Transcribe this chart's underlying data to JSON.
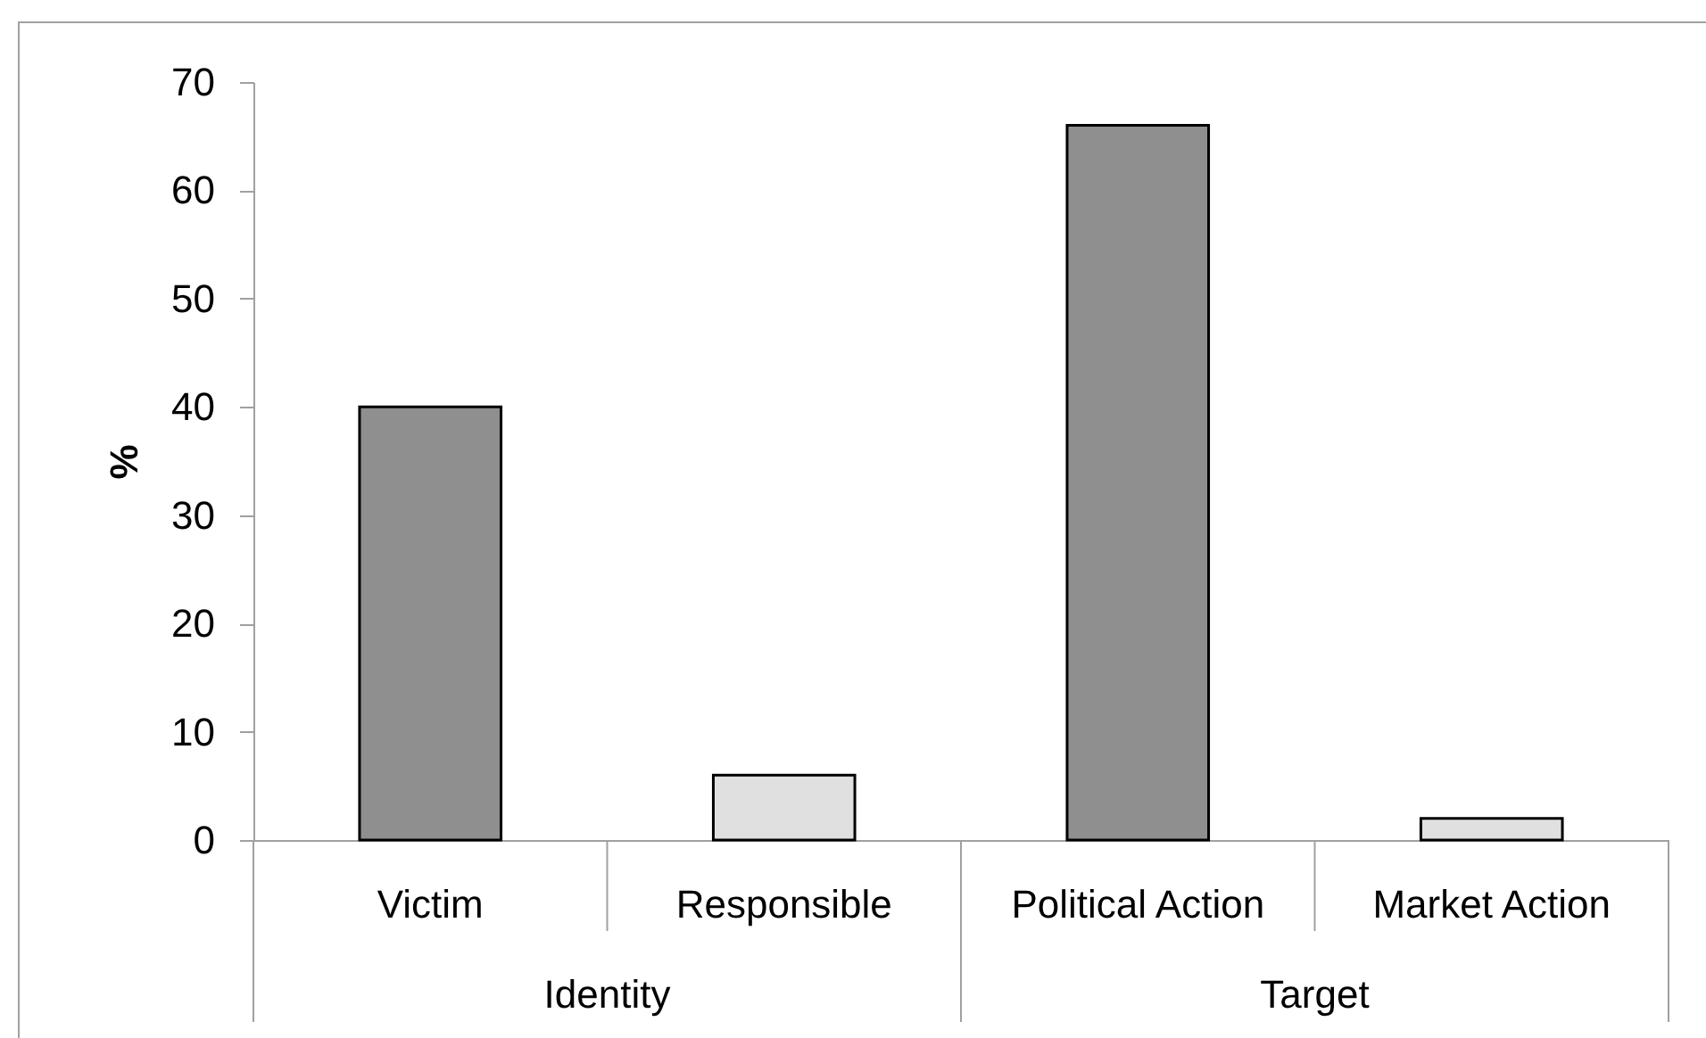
{
  "chart_data": {
    "type": "bar",
    "ylabel": "%",
    "categories": [
      "Victim",
      "Responsible",
      "Political Action",
      "Market Action"
    ],
    "values": [
      40,
      6,
      66,
      2
    ],
    "colors": [
      "#8f8f8f",
      "#e0e0e0",
      "#8f8f8f",
      "#e0e0e0"
    ],
    "ylim": [
      0,
      70
    ],
    "yticks": [
      0,
      10,
      20,
      30,
      40,
      50,
      60,
      70
    ],
    "annotations": [
      "Identity",
      "Target"
    ]
  }
}
